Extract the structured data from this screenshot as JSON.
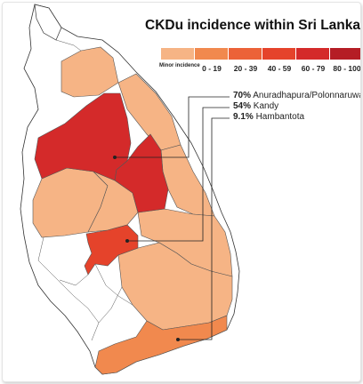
{
  "title": "CKDu incidence within Sri Lanka",
  "legend": {
    "items": [
      {
        "label": "Minor incidence",
        "color": "#f6b485"
      },
      {
        "label": "0 - 19",
        "color": "#f1894e"
      },
      {
        "label": "20 - 39",
        "color": "#ec6238"
      },
      {
        "label": "40 - 59",
        "color": "#e5432b"
      },
      {
        "label": "60 - 79",
        "color": "#d42a2a"
      },
      {
        "label": "80 - 100",
        "color": "#b51d25"
      }
    ]
  },
  "annotations": [
    {
      "value": "70%",
      "place": "Anuradhapura/Polonnaruwa"
    },
    {
      "value": "54%",
      "place": "Kandy"
    },
    {
      "value": "9.1%",
      "place": "Hambantota"
    }
  ],
  "colors": {
    "outline": "#333333",
    "no_data": "#ffffff",
    "minor": "#f6b485",
    "band_0_19": "#f1894e",
    "band_40_59": "#e5432b",
    "band_60_79": "#d42a2a"
  }
}
